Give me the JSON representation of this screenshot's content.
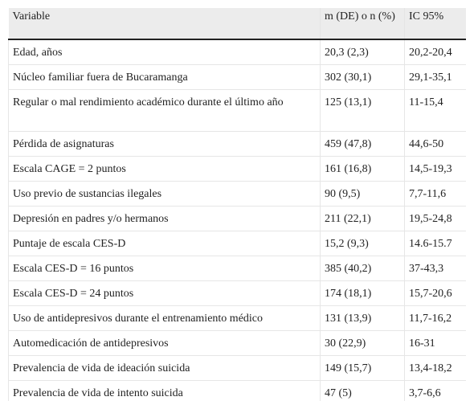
{
  "headers": {
    "variable": "Variable",
    "value": "m (DE) o n (%)",
    "ci": "IC 95%"
  },
  "rows": [
    {
      "variable": "Edad, años",
      "value": "20,3 (2,3)",
      "ci": "20,2-20,4"
    },
    {
      "variable": "Núcleo familiar fuera de Bucaramanga",
      "value": "302 (30,1)",
      "ci": "29,1-35,1"
    },
    {
      "variable": "Regular o mal rendimiento académico durante el último año",
      "value": "125 (13,1)",
      "ci": "11-15,4"
    },
    {
      "variable": "Pérdida de asignaturas",
      "value": "459 (47,8)",
      "ci": "44,6-50"
    },
    {
      "variable": "Escala CAGE = 2 puntos",
      "value": "161 (16,8)",
      "ci": "14,5-19,3"
    },
    {
      "variable": "Uso previo de sustancias ilegales",
      "value": "90 (9,5)",
      "ci": "7,7-11,6"
    },
    {
      "variable": "Depresión en padres y/o hermanos",
      "value": "211 (22,1)",
      "ci": "19,5-24,8"
    },
    {
      "variable": "Puntaje de escala CES-D",
      "value": "15,2 (9,3)",
      "ci": "14.6-15.7"
    },
    {
      "variable": "Escala CES-D = 16 puntos",
      "value": "385 (40,2)",
      "ci": "37-43,3"
    },
    {
      "variable": "Escala CES-D = 24 puntos",
      "value": "174 (18,1)",
      "ci": "15,7-20,6"
    },
    {
      "variable": "Uso de antidepresivos durante el entrenamiento médico",
      "value": "131 (13,9)",
      "ci": "11,7-16,2"
    },
    {
      "variable": "Automedicación de antidepresivos",
      "value": "30 (22,9)",
      "ci": "16-31"
    },
    {
      "variable": "Prevalencia de vida de ideación suicida",
      "value": "149 (15,7)",
      "ci": "13,4-18,2"
    },
    {
      "variable": "Prevalencia de vida de intento suicida",
      "value": "47 (5)",
      "ci": "3,7-6,6"
    }
  ]
}
